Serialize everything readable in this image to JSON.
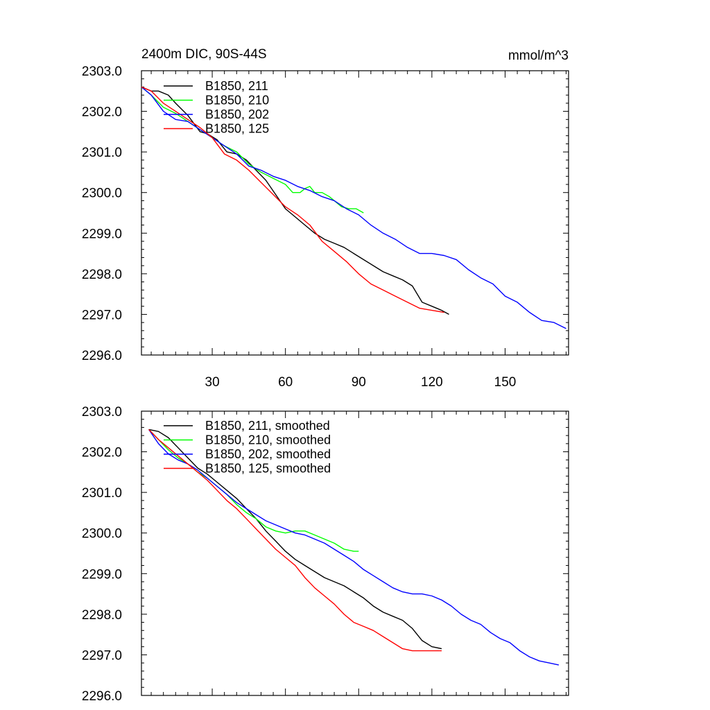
{
  "figure": {
    "title_left": "2400m DIC, 90S-44S",
    "title_right": "mmol/m^3"
  },
  "chart_data": [
    {
      "type": "line",
      "title": "2400m DIC, 90S-44S",
      "units": "mmol/m^3",
      "xlim": [
        1,
        176
      ],
      "ylim": [
        2296.0,
        2303.0
      ],
      "x_ticks": [
        30,
        60,
        90,
        120,
        150
      ],
      "x_tick_labels": [
        "30",
        "60",
        "90",
        "120",
        "150"
      ],
      "y_ticks": [
        2296.0,
        2297.0,
        2298.0,
        2299.0,
        2300.0,
        2301.0,
        2302.0,
        2303.0
      ],
      "y_tick_labels": [
        "2296.0",
        "2297.0",
        "2298.0",
        "2299.0",
        "2300.0",
        "2301.0",
        "2302.0",
        "2303.0"
      ],
      "legend_position": "top-left",
      "series": [
        {
          "name": "B1850, 211",
          "color": "#000000",
          "x": [
            1,
            5,
            8,
            12,
            15,
            20,
            25,
            28,
            32,
            36,
            40,
            44,
            48,
            52,
            56,
            60,
            64,
            68,
            72,
            76,
            80,
            84,
            88,
            92,
            96,
            100,
            104,
            108,
            112,
            116,
            120,
            124,
            127
          ],
          "y": [
            2302.6,
            2302.5,
            2302.5,
            2302.4,
            2302.2,
            2301.9,
            2301.5,
            2301.45,
            2301.3,
            2301.0,
            2300.95,
            2300.8,
            2300.55,
            2300.3,
            2299.95,
            2299.6,
            2299.4,
            2299.2,
            2299.0,
            2298.85,
            2298.75,
            2298.65,
            2298.5,
            2298.35,
            2298.2,
            2298.05,
            2297.95,
            2297.85,
            2297.7,
            2297.3,
            2297.2,
            2297.1,
            2297.0
          ]
        },
        {
          "name": "B1850, 210",
          "color": "#00ff00",
          "x": [
            1,
            5,
            10,
            15,
            20,
            25,
            30,
            35,
            40,
            45,
            50,
            55,
            60,
            63,
            66,
            68,
            70,
            72,
            75,
            78,
            80,
            83,
            86,
            89,
            92
          ],
          "y": [
            2302.6,
            2302.4,
            2302.1,
            2301.95,
            2301.75,
            2301.55,
            2301.35,
            2301.15,
            2301.0,
            2300.7,
            2300.5,
            2300.35,
            2300.2,
            2300.0,
            2300.0,
            2300.1,
            2300.15,
            2300.0,
            2300.0,
            2299.9,
            2299.8,
            2299.65,
            2299.6,
            2299.6,
            2299.5
          ]
        },
        {
          "name": "B1850, 202",
          "color": "#0000ff",
          "x": [
            1,
            5,
            10,
            15,
            20,
            25,
            30,
            35,
            40,
            45,
            50,
            55,
            60,
            65,
            70,
            75,
            80,
            85,
            90,
            95,
            100,
            105,
            110,
            115,
            120,
            125,
            130,
            135,
            140,
            145,
            150,
            155,
            160,
            165,
            170,
            175
          ],
          "y": [
            2302.6,
            2302.4,
            2302.0,
            2301.8,
            2301.75,
            2301.55,
            2301.35,
            2301.15,
            2300.95,
            2300.65,
            2300.55,
            2300.4,
            2300.3,
            2300.15,
            2300.05,
            2299.9,
            2299.8,
            2299.6,
            2299.45,
            2299.2,
            2299.0,
            2298.85,
            2298.65,
            2298.5,
            2298.5,
            2298.45,
            2298.35,
            2298.1,
            2297.9,
            2297.75,
            2297.45,
            2297.3,
            2297.05,
            2296.85,
            2296.8,
            2296.65
          ]
        },
        {
          "name": "B1850, 125",
          "color": "#ff0000",
          "x": [
            1,
            5,
            10,
            15,
            20,
            25,
            30,
            35,
            40,
            45,
            50,
            55,
            60,
            65,
            70,
            75,
            80,
            85,
            90,
            95,
            100,
            105,
            110,
            115,
            120,
            125
          ],
          "y": [
            2302.6,
            2302.5,
            2302.2,
            2302.0,
            2301.8,
            2301.6,
            2301.35,
            2300.95,
            2300.8,
            2300.55,
            2300.25,
            2299.95,
            2299.65,
            2299.45,
            2299.2,
            2298.8,
            2298.55,
            2298.3,
            2298.0,
            2297.75,
            2297.6,
            2297.45,
            2297.3,
            2297.15,
            2297.1,
            2297.05
          ]
        }
      ]
    },
    {
      "type": "line",
      "xlim": [
        1,
        176
      ],
      "ylim": [
        2296.0,
        2303.0
      ],
      "x_ticks": [
        30,
        60,
        90,
        120,
        150
      ],
      "y_ticks": [
        2296.0,
        2297.0,
        2298.0,
        2299.0,
        2300.0,
        2301.0,
        2302.0,
        2303.0
      ],
      "y_tick_labels": [
        "2296.0",
        "2297.0",
        "2298.0",
        "2299.0",
        "2300.0",
        "2301.0",
        "2302.0",
        "2303.0"
      ],
      "legend_position": "top-left",
      "series": [
        {
          "name": "B1850, 211, smoothed",
          "color": "#000000",
          "x": [
            4,
            8,
            12,
            16,
            20,
            24,
            28,
            32,
            36,
            40,
            44,
            48,
            52,
            56,
            60,
            64,
            68,
            72,
            76,
            80,
            84,
            88,
            92,
            96,
            100,
            104,
            108,
            112,
            116,
            120,
            124
          ],
          "y": [
            2302.55,
            2302.5,
            2302.35,
            2302.1,
            2301.85,
            2301.6,
            2301.45,
            2301.25,
            2301.05,
            2300.85,
            2300.6,
            2300.35,
            2300.05,
            2299.8,
            2299.55,
            2299.35,
            2299.2,
            2299.05,
            2298.9,
            2298.8,
            2298.7,
            2298.55,
            2298.4,
            2298.2,
            2298.05,
            2297.95,
            2297.85,
            2297.65,
            2297.35,
            2297.2,
            2297.15
          ]
        },
        {
          "name": "B1850, 210, smoothed",
          "color": "#00ff00",
          "x": [
            4,
            8,
            12,
            16,
            20,
            24,
            28,
            32,
            36,
            40,
            44,
            48,
            52,
            56,
            60,
            64,
            68,
            72,
            76,
            80,
            84,
            88,
            90
          ],
          "y": [
            2302.55,
            2302.3,
            2302.05,
            2301.85,
            2301.7,
            2301.5,
            2301.35,
            2301.15,
            2300.95,
            2300.7,
            2300.5,
            2300.35,
            2300.15,
            2300.05,
            2300.0,
            2300.05,
            2300.05,
            2299.95,
            2299.85,
            2299.75,
            2299.6,
            2299.55,
            2299.55
          ]
        },
        {
          "name": "B1850, 202, smoothed",
          "color": "#0000ff",
          "x": [
            4,
            8,
            12,
            16,
            20,
            24,
            28,
            32,
            36,
            40,
            44,
            48,
            52,
            56,
            60,
            64,
            68,
            72,
            76,
            80,
            84,
            88,
            92,
            96,
            100,
            104,
            108,
            112,
            116,
            120,
            124,
            128,
            132,
            136,
            140,
            144,
            148,
            152,
            156,
            160,
            164,
            168,
            172
          ],
          "y": [
            2302.55,
            2302.2,
            2301.95,
            2301.8,
            2301.7,
            2301.55,
            2301.35,
            2301.15,
            2300.95,
            2300.75,
            2300.6,
            2300.45,
            2300.3,
            2300.2,
            2300.1,
            2300.0,
            2299.95,
            2299.85,
            2299.75,
            2299.6,
            2299.45,
            2299.3,
            2299.1,
            2298.95,
            2298.8,
            2298.65,
            2298.55,
            2298.5,
            2298.5,
            2298.45,
            2298.35,
            2298.2,
            2298.0,
            2297.85,
            2297.75,
            2297.55,
            2297.4,
            2297.3,
            2297.1,
            2296.95,
            2296.85,
            2296.8,
            2296.75
          ]
        },
        {
          "name": "B1850, 125, smoothed",
          "color": "#ff0000",
          "x": [
            4,
            8,
            12,
            16,
            20,
            24,
            28,
            32,
            36,
            40,
            44,
            48,
            52,
            56,
            60,
            64,
            68,
            72,
            76,
            80,
            84,
            88,
            92,
            96,
            100,
            104,
            108,
            112,
            116,
            120,
            124
          ],
          "y": [
            2302.55,
            2302.3,
            2302.1,
            2301.9,
            2301.7,
            2301.5,
            2301.3,
            2301.05,
            2300.8,
            2300.6,
            2300.35,
            2300.1,
            2299.85,
            2299.6,
            2299.4,
            2299.2,
            2298.9,
            2298.65,
            2298.45,
            2298.25,
            2298.0,
            2297.8,
            2297.7,
            2297.6,
            2297.45,
            2297.3,
            2297.15,
            2297.1,
            2297.1,
            2297.1,
            2297.1
          ]
        }
      ]
    }
  ]
}
